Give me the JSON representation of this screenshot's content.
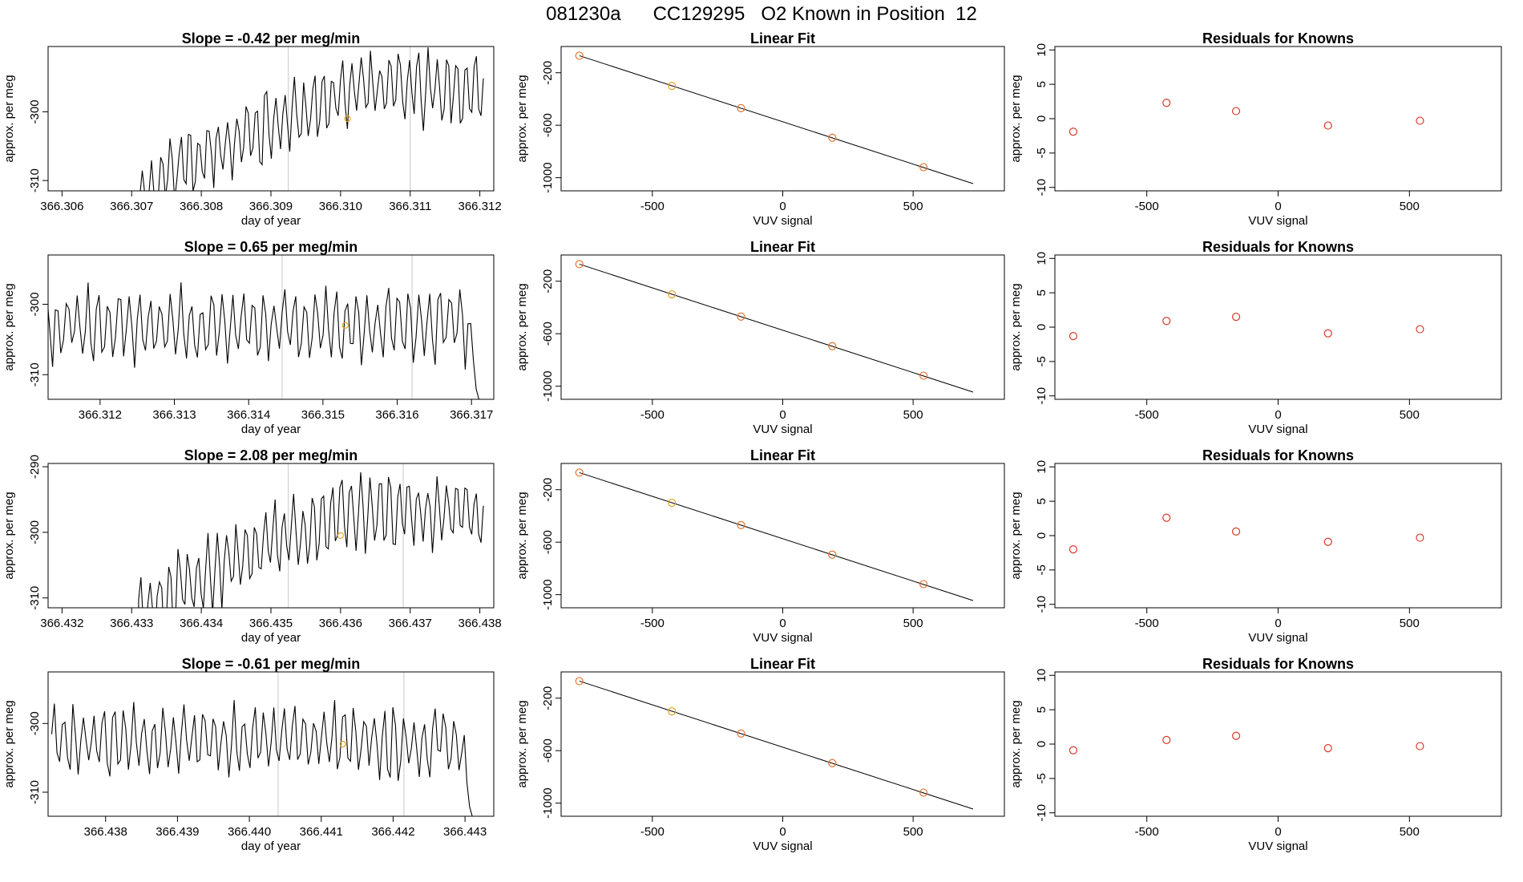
{
  "page": {
    "title": "081230a      CC129295   O2 Known in Position  12"
  },
  "colors": {
    "line": "#000000",
    "known_point": "#e4a420",
    "fit_point": "#e5732e",
    "residual_point": "#d73a2a",
    "marker_line": "#c8c8c8",
    "fit_line": "#000000"
  },
  "panel_titles": {
    "linear_fit": "Linear Fit",
    "residuals": "Residuals for Knowns"
  },
  "axis_labels": {
    "time_x": "day of year",
    "time_y": "approx. per meg",
    "fit_x": "VUV signal",
    "fit_y": "approx. per meg",
    "resid_x": "VUV signal",
    "resid_y": "approx. per meg"
  },
  "chart_data": [
    {
      "row": 1,
      "time_series": {
        "type": "line",
        "title": "Slope =  -0.42  per meg/min",
        "xlabel": "day of year",
        "ylabel": "approx. per meg",
        "xlim": [
          366.3058,
          366.3122
        ],
        "ylim": [
          -311.5,
          -290.5
        ],
        "x_ticks": [
          "366.306",
          "366.307",
          "366.308",
          "366.309",
          "366.310",
          "366.311",
          "366.312"
        ],
        "y_ticks": [
          "-300",
          "-310"
        ],
        "y_tick_values": [
          -300,
          -310
        ],
        "x_start": 366.30712,
        "x_end": 366.31205,
        "n_points": 150,
        "base_level": -312.5,
        "ramp_end": 366.3103,
        "final_level": -296.5,
        "amplitude": 4.5,
        "cycle_count": 36,
        "vertical_markers": [
          366.30925,
          366.311
        ],
        "known_point": {
          "x": 366.3101,
          "y": -301.0
        }
      },
      "linear_fit": {
        "type": "scatter",
        "title": "Linear Fit",
        "xlabel": "VUV signal",
        "ylabel": "approx. per meg",
        "xlim": [
          -850,
          850
        ],
        "ylim": [
          -1100,
          0
        ],
        "x_ticks": [
          "-500",
          "0",
          "500"
        ],
        "x_tick_values": [
          -500,
          0,
          500
        ],
        "y_ticks": [
          "-200",
          "-600",
          "-1000"
        ],
        "y_tick_values": [
          -200,
          -600,
          -1000
        ],
        "fit_line": {
          "x": [
            -780,
            730
          ],
          "y": [
            -70,
            -1045
          ]
        },
        "points": [
          {
            "x": -780,
            "y": -70
          },
          {
            "x": -425,
            "y": -300
          },
          {
            "x": -160,
            "y": -470
          },
          {
            "x": 190,
            "y": -695
          },
          {
            "x": 540,
            "y": -920
          }
        ],
        "highlight_index": 1
      },
      "residuals": {
        "type": "scatter",
        "title": "Residuals for Knowns",
        "xlabel": "VUV signal",
        "ylabel": "approx. per meg",
        "xlim": [
          -850,
          850
        ],
        "ylim": [
          -10.5,
          10.5
        ],
        "x_ticks": [
          "-500",
          "0",
          "500"
        ],
        "x_tick_values": [
          -500,
          0,
          500
        ],
        "y_ticks": [
          "10",
          "5",
          "0",
          "-5",
          "-10"
        ],
        "y_tick_values": [
          10,
          5,
          0,
          -5,
          -10
        ],
        "points": [
          {
            "x": -780,
            "y": -1.9
          },
          {
            "x": -425,
            "y": 2.3
          },
          {
            "x": -160,
            "y": 1.1
          },
          {
            "x": 190,
            "y": -1.0
          },
          {
            "x": 540,
            "y": -0.3
          }
        ]
      }
    },
    {
      "row": 2,
      "time_series": {
        "type": "line",
        "title": "Slope =  0.65  per meg/min",
        "xlabel": "day of year",
        "ylabel": "approx. per meg",
        "xlim": [
          366.3113,
          366.3173
        ],
        "ylim": [
          -313.5,
          -293.0
        ],
        "x_ticks": [
          "366.312",
          "366.313",
          "366.314",
          "366.315",
          "366.316",
          "366.317"
        ],
        "y_ticks": [
          "-300",
          "-310"
        ],
        "y_tick_values": [
          -300,
          -310
        ],
        "x_start": 366.31125,
        "x_end": 366.3171,
        "n_points": 160,
        "base_level": -303.0,
        "ramp_end": 366.3113,
        "final_level": -303.0,
        "amplitude": 4.5,
        "cycle_count": 42,
        "tail_drop": -313.5,
        "vertical_markers": [
          366.31445,
          366.3162
        ],
        "known_point": {
          "x": 366.3153,
          "y": -303.0
        }
      },
      "linear_fit": {
        "type": "scatter",
        "title": "Linear Fit",
        "xlabel": "VUV signal",
        "ylabel": "approx. per meg",
        "xlim": [
          -850,
          850
        ],
        "ylim": [
          -1100,
          0
        ],
        "x_ticks": [
          "-500",
          "0",
          "500"
        ],
        "x_tick_values": [
          -500,
          0,
          500
        ],
        "y_ticks": [
          "-200",
          "-600",
          "-1000"
        ],
        "y_tick_values": [
          -200,
          -600,
          -1000
        ],
        "fit_line": {
          "x": [
            -780,
            730
          ],
          "y": [
            -70,
            -1045
          ]
        },
        "points": [
          {
            "x": -780,
            "y": -70
          },
          {
            "x": -425,
            "y": -300
          },
          {
            "x": -160,
            "y": -470
          },
          {
            "x": 190,
            "y": -695
          },
          {
            "x": 540,
            "y": -920
          }
        ],
        "highlight_index": 1
      },
      "residuals": {
        "type": "scatter",
        "title": "Residuals for Knowns",
        "xlabel": "VUV signal",
        "ylabel": "approx. per meg",
        "xlim": [
          -850,
          850
        ],
        "ylim": [
          -10.5,
          10.5
        ],
        "x_ticks": [
          "-500",
          "0",
          "500"
        ],
        "x_tick_values": [
          -500,
          0,
          500
        ],
        "y_ticks": [
          "10",
          "5",
          "0",
          "-5",
          "-10"
        ],
        "y_tick_values": [
          10,
          5,
          0,
          -5,
          -10
        ],
        "points": [
          {
            "x": -780,
            "y": -1.3
          },
          {
            "x": -425,
            "y": 0.9
          },
          {
            "x": -160,
            "y": 1.5
          },
          {
            "x": 190,
            "y": -0.9
          },
          {
            "x": 540,
            "y": -0.3
          }
        ]
      }
    },
    {
      "row": 3,
      "time_series": {
        "type": "line",
        "title": "Slope =  2.08  per meg/min",
        "xlabel": "day of year",
        "ylabel": "approx. per meg",
        "xlim": [
          366.4318,
          366.4382
        ],
        "ylim": [
          -311.5,
          -289.5
        ],
        "x_ticks": [
          "366.432",
          "366.433",
          "366.434",
          "366.435",
          "366.436",
          "366.437",
          "366.438"
        ],
        "y_ticks": [
          "-290",
          "-300",
          "-310"
        ],
        "y_tick_values": [
          -290,
          -300,
          -310
        ],
        "x_start": 366.4331,
        "x_end": 366.43805,
        "n_points": 150,
        "base_level": -313.0,
        "ramp_end": 366.436,
        "final_level": -297.0,
        "amplitude": 4.8,
        "cycle_count": 36,
        "vertical_markers": [
          366.43525,
          366.4369
        ],
        "known_point": {
          "x": 366.436,
          "y": -300.5
        }
      },
      "linear_fit": {
        "type": "scatter",
        "title": "Linear Fit",
        "xlabel": "VUV signal",
        "ylabel": "approx. per meg",
        "xlim": [
          -850,
          850
        ],
        "ylim": [
          -1100,
          0
        ],
        "x_ticks": [
          "-500",
          "0",
          "500"
        ],
        "x_tick_values": [
          -500,
          0,
          500
        ],
        "y_ticks": [
          "-200",
          "-600",
          "-1000"
        ],
        "y_tick_values": [
          -200,
          -600,
          -1000
        ],
        "fit_line": {
          "x": [
            -780,
            730
          ],
          "y": [
            -70,
            -1045
          ]
        },
        "points": [
          {
            "x": -780,
            "y": -70
          },
          {
            "x": -425,
            "y": -300
          },
          {
            "x": -160,
            "y": -470
          },
          {
            "x": 190,
            "y": -695
          },
          {
            "x": 540,
            "y": -920
          }
        ],
        "highlight_index": 1
      },
      "residuals": {
        "type": "scatter",
        "title": "Residuals for Knowns",
        "xlabel": "VUV signal",
        "ylabel": "approx. per meg",
        "xlim": [
          -850,
          850
        ],
        "ylim": [
          -10.5,
          10.5
        ],
        "x_ticks": [
          "-500",
          "0",
          "500"
        ],
        "x_tick_values": [
          -500,
          0,
          500
        ],
        "y_ticks": [
          "10",
          "5",
          "0",
          "-5",
          "-10"
        ],
        "y_tick_values": [
          10,
          5,
          0,
          -5,
          -10
        ],
        "points": [
          {
            "x": -780,
            "y": -2.0
          },
          {
            "x": -425,
            "y": 2.6
          },
          {
            "x": -160,
            "y": 0.6
          },
          {
            "x": 190,
            "y": -0.9
          },
          {
            "x": 540,
            "y": -0.3
          }
        ]
      }
    },
    {
      "row": 4,
      "time_series": {
        "type": "line",
        "title": "Slope =  -0.61  per meg/min",
        "xlabel": "day of year",
        "ylabel": "approx. per meg",
        "xlim": [
          366.4372,
          366.4434
        ],
        "ylim": [
          -313.5,
          -292.5
        ],
        "x_ticks": [
          "366.438",
          "366.439",
          "366.440",
          "366.441",
          "366.442",
          "366.443"
        ],
        "y_ticks": [
          "-300",
          "-310"
        ],
        "y_tick_values": [
          -300,
          -310
        ],
        "x_start": 366.43725,
        "x_end": 366.4431,
        "n_points": 160,
        "base_level": -302.5,
        "ramp_end": 366.4372,
        "final_level": -302.5,
        "amplitude": 4.5,
        "cycle_count": 42,
        "tail_drop": -313.5,
        "vertical_markers": [
          366.4404,
          366.44215
        ],
        "known_point": {
          "x": 366.4413,
          "y": -303.0
        }
      },
      "linear_fit": {
        "type": "scatter",
        "title": "Linear Fit",
        "xlabel": "VUV signal",
        "ylabel": "approx. per meg",
        "xlim": [
          -850,
          850
        ],
        "ylim": [
          -1100,
          0
        ],
        "x_ticks": [
          "-500",
          "0",
          "500"
        ],
        "x_tick_values": [
          -500,
          0,
          500
        ],
        "y_ticks": [
          "-200",
          "-600",
          "-1000"
        ],
        "y_tick_values": [
          -200,
          -600,
          -1000
        ],
        "fit_line": {
          "x": [
            -780,
            730
          ],
          "y": [
            -70,
            -1045
          ]
        },
        "points": [
          {
            "x": -780,
            "y": -70
          },
          {
            "x": -425,
            "y": -300
          },
          {
            "x": -160,
            "y": -470
          },
          {
            "x": 190,
            "y": -695
          },
          {
            "x": 540,
            "y": -920
          }
        ],
        "highlight_index": 1
      },
      "residuals": {
        "type": "scatter",
        "title": "Residuals for Knowns",
        "xlabel": "VUV signal",
        "ylabel": "approx. per meg",
        "xlim": [
          -850,
          850
        ],
        "ylim": [
          -10.5,
          10.5
        ],
        "x_ticks": [
          "-500",
          "0",
          "500"
        ],
        "x_tick_values": [
          -500,
          0,
          500
        ],
        "y_ticks": [
          "10",
          "5",
          "0",
          "-5",
          "-10"
        ],
        "y_tick_values": [
          10,
          5,
          0,
          -5,
          -10
        ],
        "points": [
          {
            "x": -780,
            "y": -0.9
          },
          {
            "x": -425,
            "y": 0.6
          },
          {
            "x": -160,
            "y": 1.2
          },
          {
            "x": 190,
            "y": -0.6
          },
          {
            "x": 540,
            "y": -0.3
          }
        ]
      }
    }
  ]
}
